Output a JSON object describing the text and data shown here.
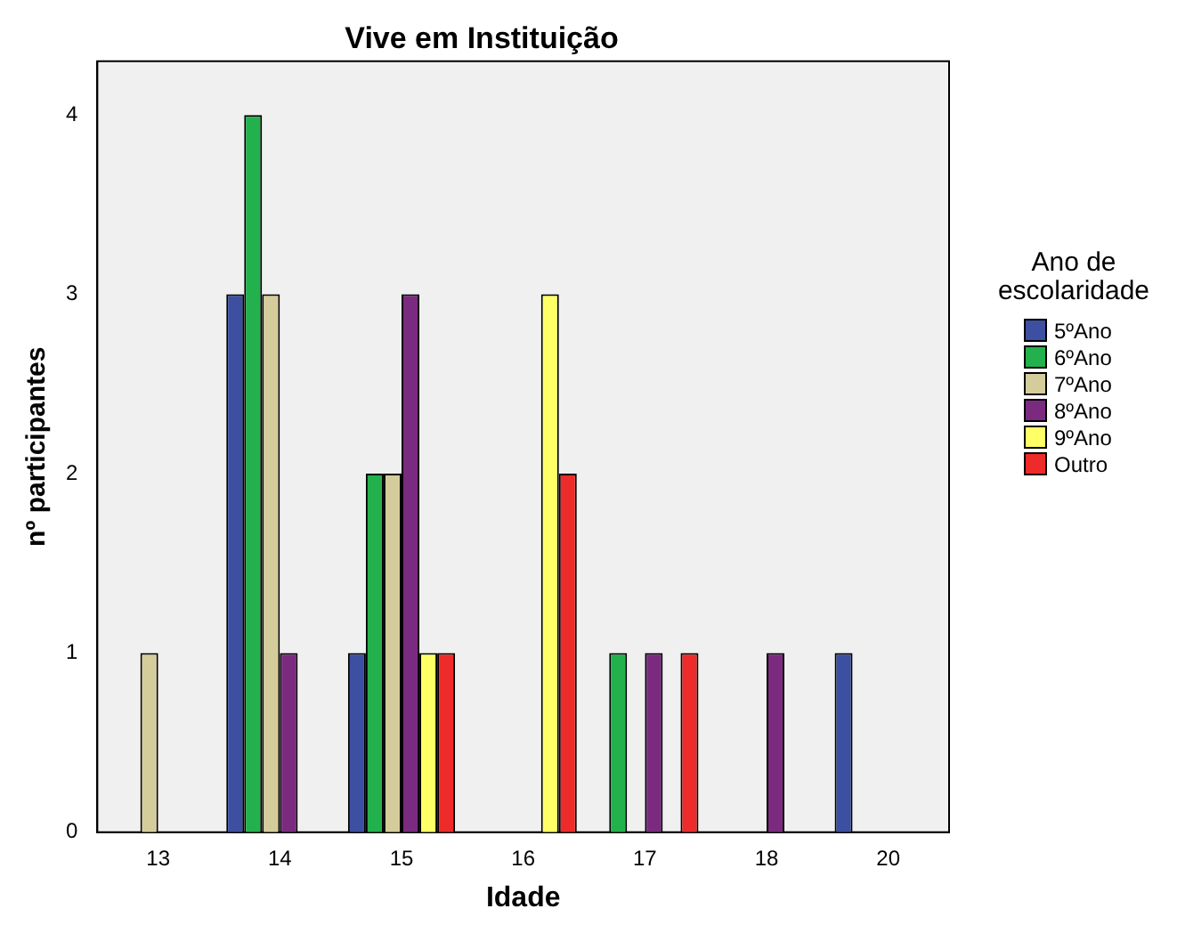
{
  "chart_data": {
    "type": "bar",
    "title": "Vive em Instituição",
    "xlabel": "Idade",
    "ylabel": "nº participantes",
    "legend_title": "Ano de escolaridade",
    "legend": "right",
    "categories": [
      "13",
      "14",
      "15",
      "16",
      "17",
      "18",
      "20"
    ],
    "ylim": [
      0,
      4.3
    ],
    "yticks": [
      0,
      1,
      2,
      3,
      4
    ],
    "series": [
      {
        "name": "5ºAno",
        "color": "#3d4fa0",
        "values": [
          null,
          3,
          1,
          null,
          null,
          null,
          1
        ]
      },
      {
        "name": "6ºAno",
        "color": "#23b14d",
        "values": [
          null,
          4,
          2,
          null,
          1,
          null,
          null
        ]
      },
      {
        "name": "7ºAno",
        "color": "#d5cc9b",
        "values": [
          1,
          3,
          2,
          null,
          null,
          null,
          null
        ]
      },
      {
        "name": "8ºAno",
        "color": "#7b2b7f",
        "values": [
          null,
          1,
          3,
          null,
          1,
          1,
          null
        ]
      },
      {
        "name": "9ºAno",
        "color": "#ffff66",
        "values": [
          null,
          null,
          1,
          3,
          null,
          null,
          null
        ]
      },
      {
        "name": "Outro",
        "color": "#ee2b2b",
        "values": [
          null,
          null,
          1,
          2,
          1,
          null,
          null
        ]
      }
    ]
  }
}
